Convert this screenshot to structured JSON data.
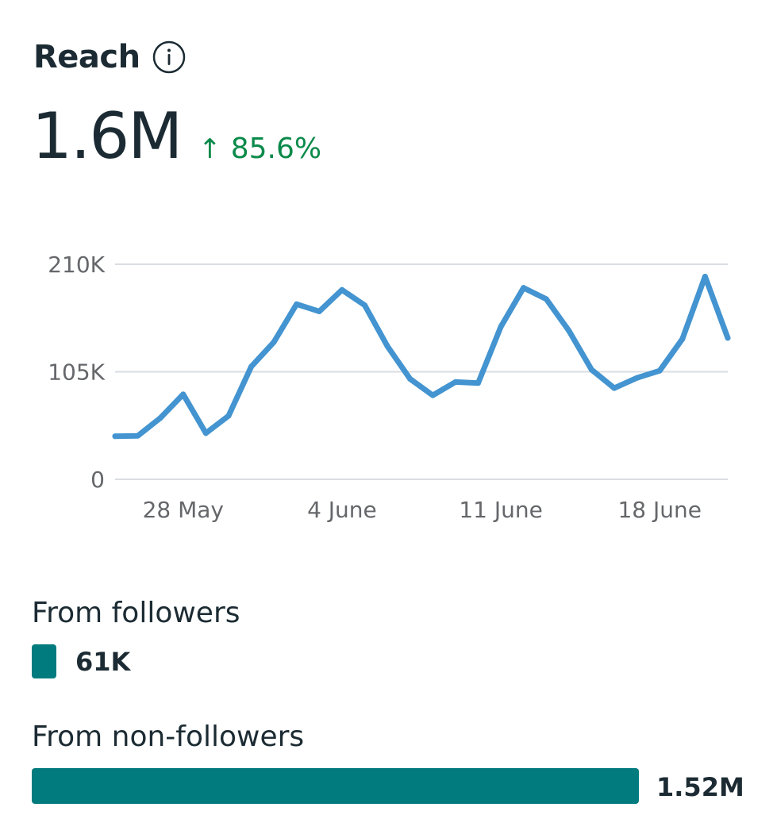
{
  "header": {
    "title": "Reach",
    "info_icon": "info-icon"
  },
  "metric": {
    "value": "1.6M",
    "change": "85.6%",
    "change_icon": "arrow-up-icon",
    "change_color": "#0a8a4a"
  },
  "chart_data": {
    "type": "line",
    "y_ticks": [
      "0",
      "105K",
      "210K"
    ],
    "ylim": [
      0,
      210000
    ],
    "x_ticks": [
      {
        "label": "28 May",
        "index": 3
      },
      {
        "label": "4 June",
        "index": 10
      },
      {
        "label": "11 June",
        "index": 17
      },
      {
        "label": "18 June",
        "index": 24
      }
    ],
    "grid": true,
    "color": "#4394d0",
    "series": [
      {
        "values": [
          42000,
          42500,
          60000,
          83000,
          45000,
          62000,
          110000,
          134000,
          171000,
          164000,
          185000,
          170000,
          130000,
          98000,
          82000,
          95000,
          94000,
          149000,
          187000,
          176000,
          145000,
          107000,
          89000,
          99000,
          106000,
          137000,
          198000,
          138000
        ]
      }
    ]
  },
  "breakdown": {
    "followers": {
      "label": "From followers",
      "value": "61K",
      "fraction": 0.04
    },
    "non_followers": {
      "label": "From non-followers",
      "value": "1.52M",
      "fraction": 0.96
    },
    "bar_color": "#027b7e"
  }
}
